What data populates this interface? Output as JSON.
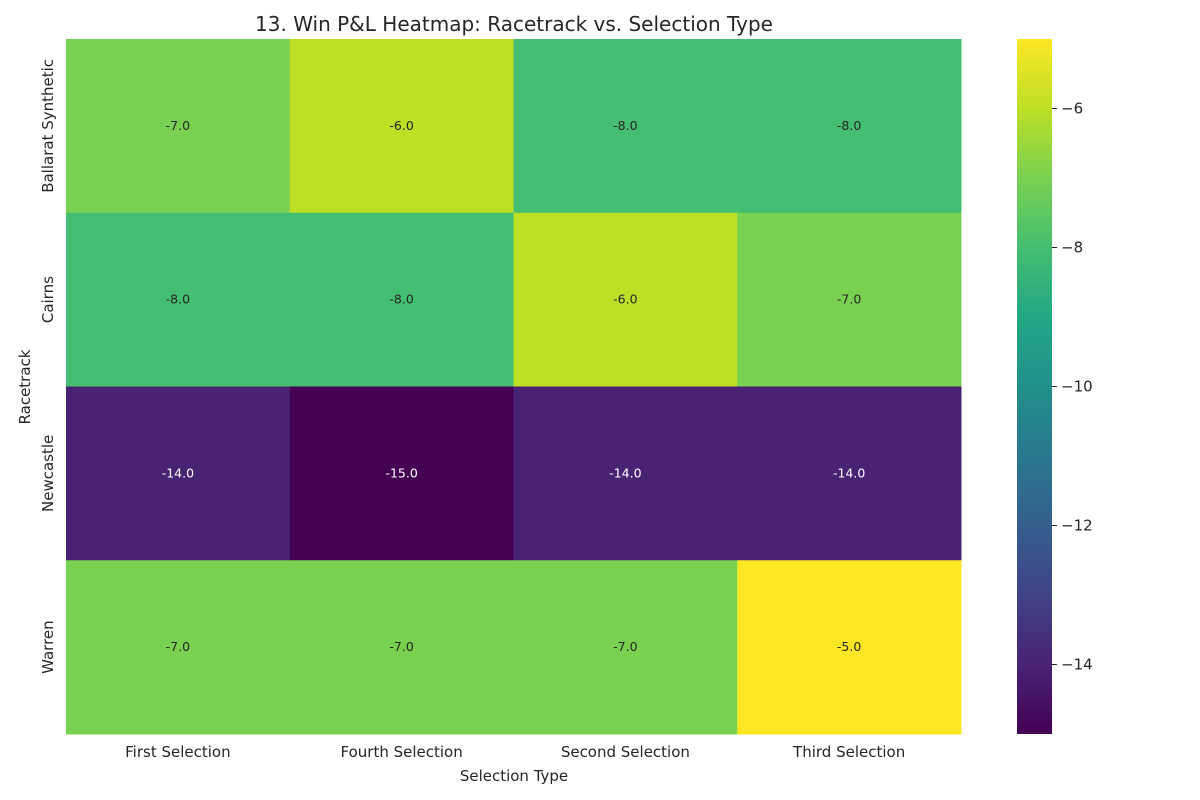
{
  "chart_data": {
    "type": "heatmap",
    "title": "13. Win P&L Heatmap: Racetrack vs. Selection Type",
    "xlabel": "Selection Type",
    "ylabel": "Racetrack",
    "x_categories": [
      "First Selection",
      "Fourth Selection",
      "Second Selection",
      "Third Selection"
    ],
    "y_categories": [
      "Ballarat Synthetic",
      "Cairns",
      "Newcastle",
      "Warren"
    ],
    "values": [
      [
        -7.0,
        -6.0,
        -8.0,
        -8.0
      ],
      [
        -8.0,
        -8.0,
        -6.0,
        -7.0
      ],
      [
        -14.0,
        -15.0,
        -14.0,
        -14.0
      ],
      [
        -7.0,
        -7.0,
        -7.0,
        -5.0
      ]
    ],
    "cell_labels": [
      [
        "-7.0",
        "-6.0",
        "-8.0",
        "-8.0"
      ],
      [
        "-8.0",
        "-8.0",
        "-6.0",
        "-7.0"
      ],
      [
        "-14.0",
        "-15.0",
        "-14.0",
        "-14.0"
      ],
      [
        "-7.0",
        "-7.0",
        "-7.0",
        "-5.0"
      ]
    ],
    "colorbar": {
      "colormap": "viridis",
      "vmin": -15,
      "vmax": -5,
      "ticks": [
        -14,
        -12,
        -10,
        -8,
        -6
      ],
      "tick_labels": [
        "−14",
        "−12",
        "−10",
        "−8",
        "−6"
      ]
    }
  }
}
